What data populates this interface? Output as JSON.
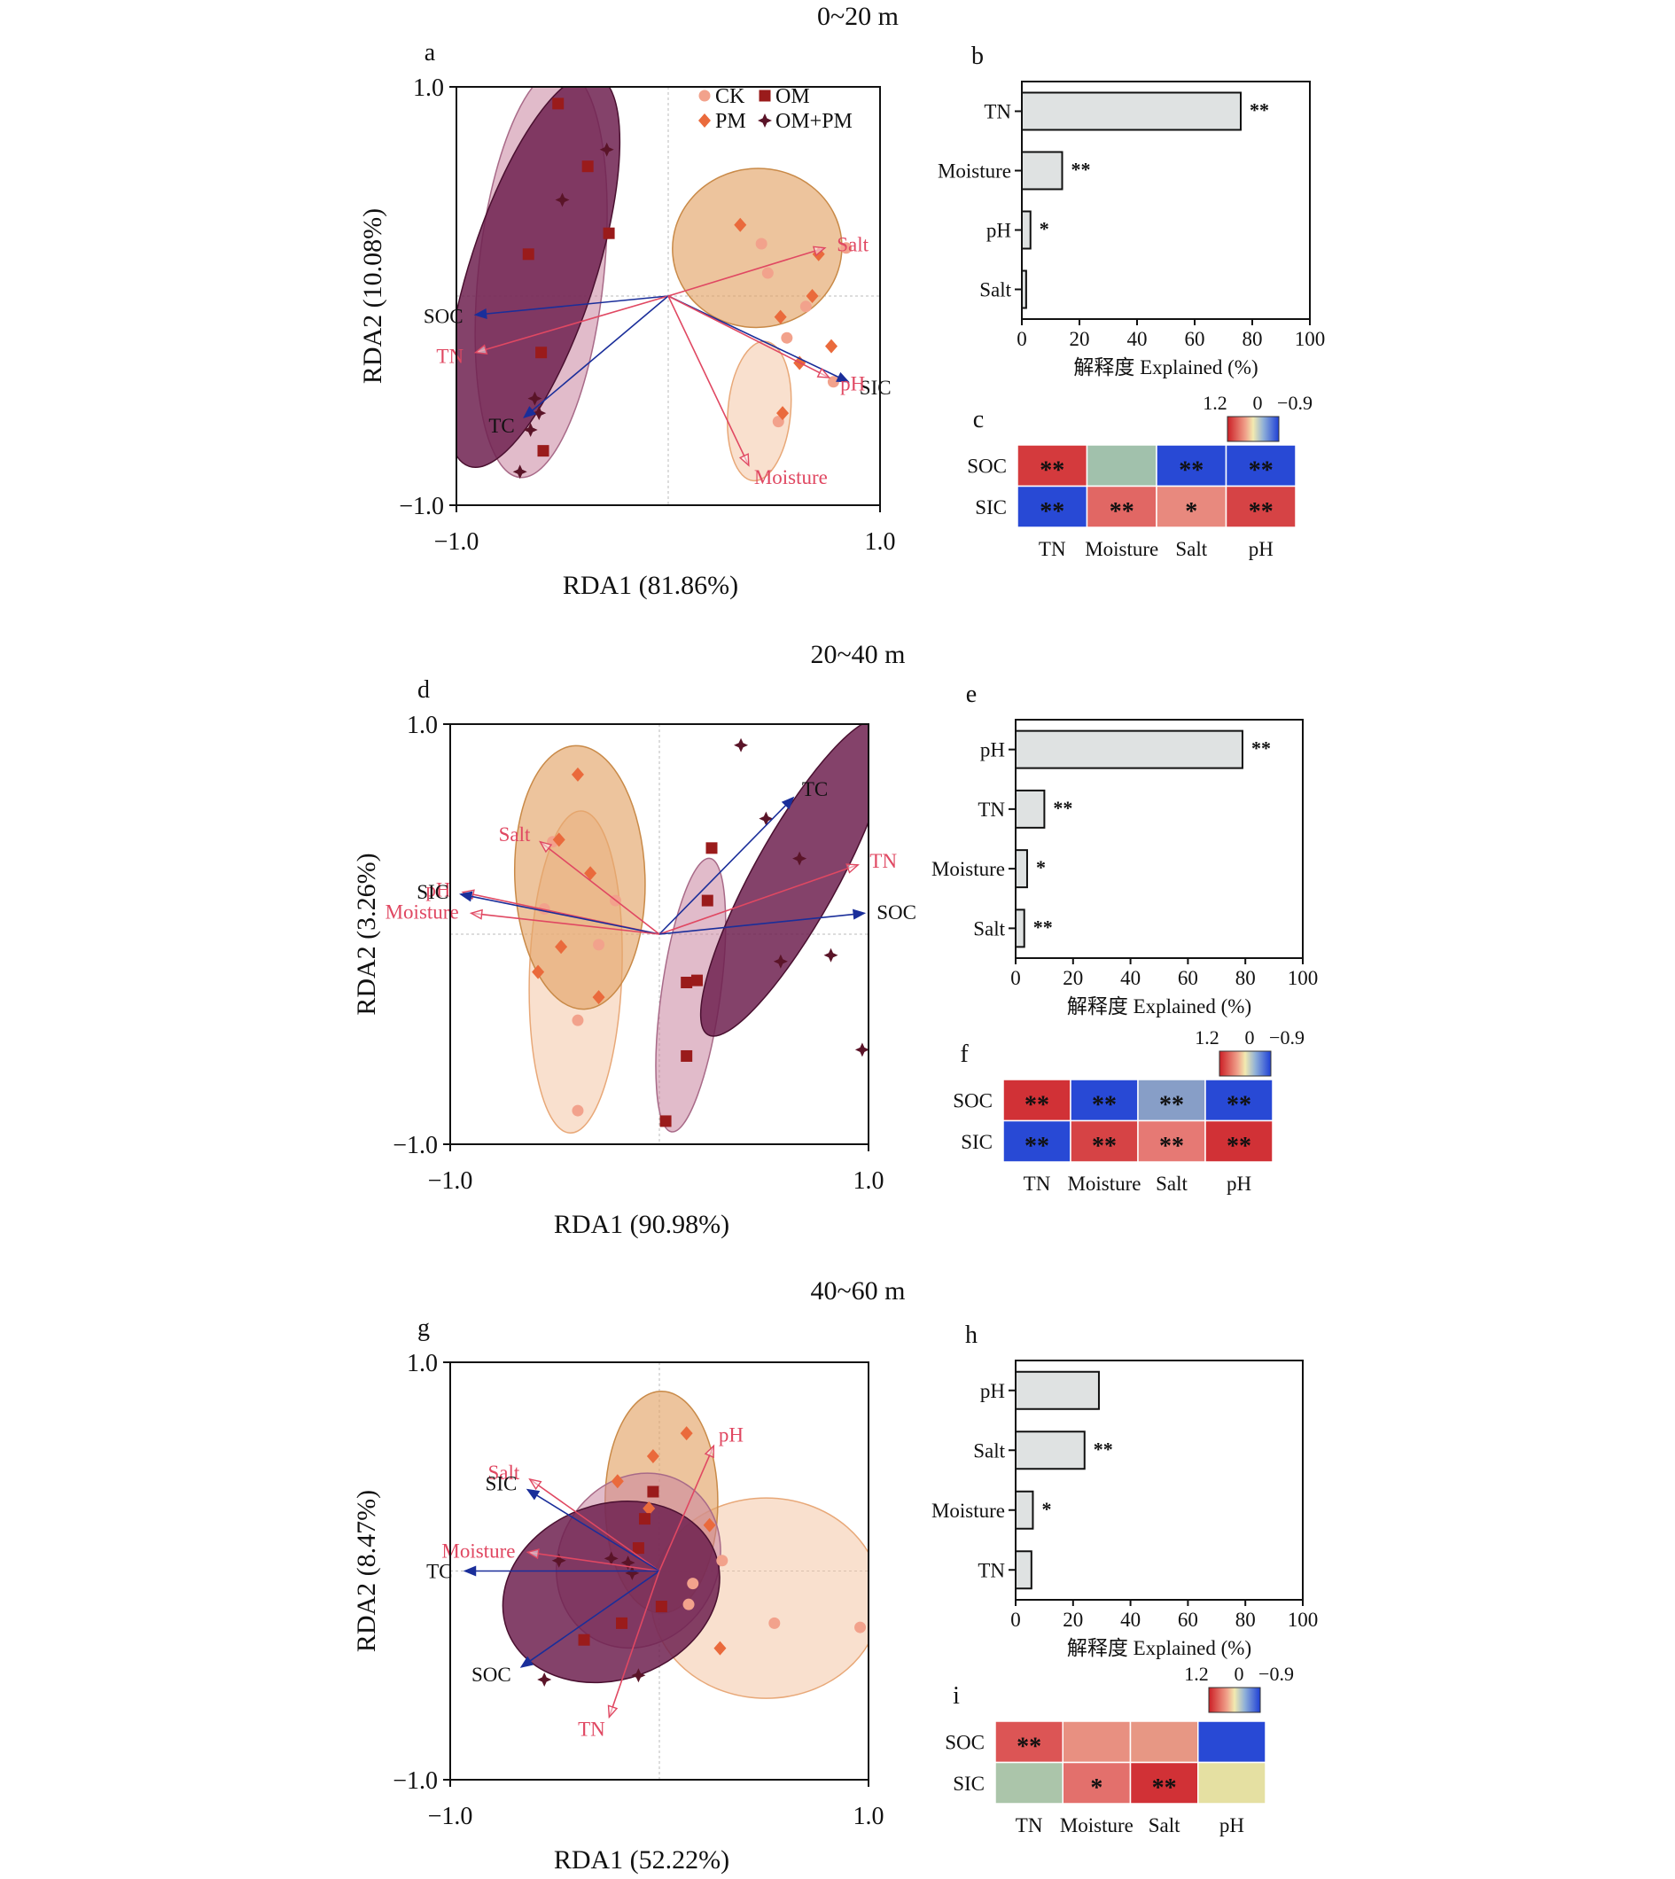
{
  "legend": [
    {
      "name": "CK",
      "color": "#f2a28c",
      "marker": "circle"
    },
    {
      "name": "OM",
      "color": "#9a1b1b",
      "marker": "square"
    },
    {
      "name": "PM",
      "color": "#ea6a3c",
      "marker": "diamond"
    },
    {
      "name": "OM+PM",
      "color": "#5a1428",
      "marker": "star"
    }
  ],
  "colors": {
    "ck_ellipse": "#f4c7a6",
    "pm_ellipse": "#e3a468",
    "om_ellipse": "#c8849e",
    "ompm_ellipse": "#6e2150",
    "red_arrow": "#e04862",
    "blue_arrow": "#1a2e9a",
    "bar_fill": "#dfe2e2"
  },
  "colorbar": {
    "max": "1.2",
    "mid": "0",
    "min": "−0.9"
  },
  "sections": [
    {
      "title": "0~20 m",
      "rda": {
        "letter": "a",
        "xlabel": "RDA1 (81.86%)",
        "ylabel": "RDA2 (10.08%)",
        "xticks": [
          "−1.0",
          "1.0"
        ],
        "yticks": [
          "1.0",
          "−1.0"
        ],
        "ellipses": [
          {
            "group": "CK",
            "cx": 0.43,
            "cy": -0.55,
            "rx": 0.33,
            "ry": 0.15,
            "angle": -85
          },
          {
            "group": "PM",
            "cx": 0.42,
            "cy": 0.23,
            "rx": 0.4,
            "ry": 0.38,
            "angle": -5
          },
          {
            "group": "OM",
            "cx": -0.6,
            "cy": 0.11,
            "rx": 0.97,
            "ry": 0.3,
            "angle": -84
          },
          {
            "group": "OM+PM",
            "cx": -0.64,
            "cy": 0.12,
            "rx": 0.97,
            "ry": 0.3,
            "angle": -72
          }
        ],
        "points": [
          {
            "group": "CK",
            "x": 0.44,
            "y": 0.25
          },
          {
            "group": "CK",
            "x": 0.56,
            "y": -0.2
          },
          {
            "group": "CK",
            "x": 0.65,
            "y": -0.05
          },
          {
            "group": "CK",
            "x": 0.47,
            "y": 0.11
          },
          {
            "group": "CK",
            "x": 0.84,
            "y": 0.23
          },
          {
            "group": "CK",
            "x": 0.78,
            "y": -0.41
          },
          {
            "group": "CK",
            "x": 0.52,
            "y": -0.6
          },
          {
            "group": "PM",
            "x": 0.34,
            "y": 0.34
          },
          {
            "group": "PM",
            "x": 0.53,
            "y": -0.1
          },
          {
            "group": "PM",
            "x": 0.68,
            "y": 0.0
          },
          {
            "group": "PM",
            "x": 0.77,
            "y": -0.24
          },
          {
            "group": "PM",
            "x": 0.54,
            "y": -0.56
          },
          {
            "group": "PM",
            "x": 0.62,
            "y": -0.32
          },
          {
            "group": "PM",
            "x": 0.71,
            "y": 0.2
          },
          {
            "group": "OM",
            "x": -0.52,
            "y": 0.92
          },
          {
            "group": "OM",
            "x": -0.38,
            "y": 0.62
          },
          {
            "group": "OM",
            "x": -0.28,
            "y": 0.3
          },
          {
            "group": "OM",
            "x": -0.66,
            "y": 0.2
          },
          {
            "group": "OM",
            "x": -0.6,
            "y": -0.27
          },
          {
            "group": "OM",
            "x": -0.59,
            "y": -0.74
          },
          {
            "group": "OM+PM",
            "x": -0.29,
            "y": 0.7
          },
          {
            "group": "OM+PM",
            "x": -0.5,
            "y": 0.46
          },
          {
            "group": "OM+PM",
            "x": -0.63,
            "y": -0.49
          },
          {
            "group": "OM+PM",
            "x": -0.65,
            "y": -0.64
          },
          {
            "group": "OM+PM",
            "x": -0.7,
            "y": -0.84
          },
          {
            "group": "OM+PM",
            "x": -0.61,
            "y": -0.56
          }
        ],
        "arrows": [
          {
            "label": "SOC",
            "color": "blue",
            "x": -0.91,
            "y": -0.09
          },
          {
            "label": "TN",
            "color": "red",
            "x": -0.91,
            "y": -0.27
          },
          {
            "label": "TC",
            "color": "blue",
            "x": -0.68,
            "y": -0.58
          },
          {
            "label": "Salt",
            "color": "red",
            "x": 0.74,
            "y": 0.23
          },
          {
            "label": "SIC",
            "color": "blue",
            "x": 0.85,
            "y": -0.41
          },
          {
            "label": "pH",
            "color": "red",
            "x": 0.76,
            "y": -0.39
          },
          {
            "label": "Moisture",
            "color": "red",
            "x": 0.38,
            "y": -0.81
          }
        ]
      },
      "bars": {
        "letter": "b",
        "xlabel": "解释度 Explained (%)",
        "xticks": [
          "0",
          "20",
          "40",
          "60",
          "80",
          "100"
        ],
        "xlim": [
          0,
          100
        ],
        "categories": [
          "TN",
          "Moisture",
          "pH",
          "Salt"
        ],
        "values": [
          76,
          14,
          3,
          1.5
        ],
        "signif": [
          "**",
          "**",
          "*",
          ""
        ]
      },
      "heatmap": {
        "letter": "c",
        "rows": [
          "SOC",
          "SIC"
        ],
        "cols": [
          "TN",
          "Moisture",
          "Salt",
          "pH"
        ],
        "values": [
          [
            1.05,
            -0.35,
            -0.85,
            -0.85
          ],
          [
            -0.85,
            0.8,
            0.6,
            1.0
          ]
        ],
        "stars": [
          [
            "**",
            "",
            "**",
            "**"
          ],
          [
            "**",
            "**",
            "*",
            "**"
          ]
        ]
      }
    },
    {
      "title": "20~40 m",
      "rda": {
        "letter": "d",
        "xlabel": "RDA1 (90.98%)",
        "ylabel": "RDA2 (3.26%)",
        "xticks": [
          "−1.0",
          "1.0"
        ],
        "yticks": [
          "1.0",
          "−1.0"
        ],
        "ellipses": [
          {
            "group": "CK",
            "cx": -0.4,
            "cy": -0.18,
            "rx": 0.77,
            "ry": 0.22,
            "angle": -88
          },
          {
            "group": "PM",
            "cx": -0.38,
            "cy": 0.27,
            "rx": 0.63,
            "ry": 0.31,
            "angle": -92
          },
          {
            "group": "OM",
            "cx": 0.15,
            "cy": -0.29,
            "rx": 0.66,
            "ry": 0.14,
            "angle": -82
          },
          {
            "group": "OM+PM",
            "cx": 0.65,
            "cy": 0.27,
            "rx": 0.86,
            "ry": 0.2,
            "angle": -61
          }
        ],
        "points": [
          {
            "group": "CK",
            "x": -0.51,
            "y": 0.44
          },
          {
            "group": "CK",
            "x": -0.55,
            "y": 0.12
          },
          {
            "group": "CK",
            "x": -0.21,
            "y": 0.16
          },
          {
            "group": "CK",
            "x": -0.29,
            "y": -0.05
          },
          {
            "group": "CK",
            "x": -0.39,
            "y": -0.41
          },
          {
            "group": "CK",
            "x": -0.39,
            "y": -0.84
          },
          {
            "group": "PM",
            "x": -0.39,
            "y": 0.76
          },
          {
            "group": "PM",
            "x": -0.48,
            "y": 0.45
          },
          {
            "group": "PM",
            "x": -0.33,
            "y": 0.29
          },
          {
            "group": "PM",
            "x": -0.58,
            "y": -0.18
          },
          {
            "group": "PM",
            "x": -0.47,
            "y": -0.06
          },
          {
            "group": "PM",
            "x": -0.29,
            "y": -0.3
          },
          {
            "group": "OM",
            "x": 0.25,
            "y": 0.41
          },
          {
            "group": "OM",
            "x": 0.23,
            "y": 0.16
          },
          {
            "group": "OM",
            "x": 0.13,
            "y": -0.23
          },
          {
            "group": "OM",
            "x": 0.18,
            "y": -0.22
          },
          {
            "group": "OM",
            "x": 0.13,
            "y": -0.58
          },
          {
            "group": "OM",
            "x": 0.03,
            "y": -0.89
          },
          {
            "group": "OM+PM",
            "x": 0.39,
            "y": 0.9
          },
          {
            "group": "OM+PM",
            "x": 0.51,
            "y": 0.55
          },
          {
            "group": "OM+PM",
            "x": 0.67,
            "y": 0.36
          },
          {
            "group": "OM+PM",
            "x": 0.58,
            "y": -0.13
          },
          {
            "group": "OM+PM",
            "x": 0.82,
            "y": -0.1
          },
          {
            "group": "OM+PM",
            "x": 0.97,
            "y": -0.55
          }
        ],
        "arrows": [
          {
            "label": "TC",
            "color": "blue",
            "x": 0.64,
            "y": 0.65
          },
          {
            "label": "TN",
            "color": "red",
            "x": 0.95,
            "y": 0.33
          },
          {
            "label": "SOC",
            "color": "blue",
            "x": 0.98,
            "y": 0.1
          },
          {
            "label": "Salt",
            "color": "red",
            "x": -0.57,
            "y": 0.44
          },
          {
            "label": "pH",
            "color": "red",
            "x": -0.94,
            "y": 0.2
          },
          {
            "label": "SIC",
            "color": "blue",
            "x": -0.95,
            "y": 0.19
          },
          {
            "label": "Moisture",
            "color": "red",
            "x": -0.9,
            "y": 0.1
          }
        ]
      },
      "bars": {
        "letter": "e",
        "xlabel": "解释度 Explained (%)",
        "xticks": [
          "0",
          "20",
          "40",
          "60",
          "80",
          "100"
        ],
        "xlim": [
          0,
          100
        ],
        "categories": [
          "pH",
          "TN",
          "Moisture",
          "Salt"
        ],
        "values": [
          79,
          10,
          4,
          3
        ],
        "signif": [
          "**",
          "**",
          "*",
          "**"
        ]
      },
      "heatmap": {
        "letter": "f",
        "rows": [
          "SOC",
          "SIC"
        ],
        "cols": [
          "TN",
          "Moisture",
          "Salt",
          "pH"
        ],
        "values": [
          [
            1.1,
            -0.85,
            -0.4,
            -0.85
          ],
          [
            -0.85,
            1.0,
            0.7,
            1.1
          ]
        ],
        "stars": [
          [
            "**",
            "**",
            "**",
            "**"
          ],
          [
            "**",
            "**",
            "**",
            "**"
          ]
        ]
      }
    },
    {
      "title": "40~60 m",
      "rda": {
        "letter": "g",
        "xlabel": "RDA1 (52.22%)",
        "ylabel": "RDA2 (8.47%)",
        "xticks": [
          "−1.0",
          "1.0"
        ],
        "yticks": [
          "1.0",
          "−1.0"
        ],
        "ellipses": [
          {
            "group": "CK",
            "cx": 0.51,
            "cy": -0.13,
            "rx": 0.55,
            "ry": 0.48,
            "angle": 0
          },
          {
            "group": "PM",
            "cx": 0.01,
            "cy": 0.33,
            "rx": 0.53,
            "ry": 0.27,
            "angle": -90
          },
          {
            "group": "OM",
            "cx": -0.1,
            "cy": 0.05,
            "rx": 0.43,
            "ry": 0.38,
            "angle": -60
          },
          {
            "group": "OM+PM",
            "cx": -0.23,
            "cy": -0.1,
            "rx": 0.53,
            "ry": 0.42,
            "angle": -20
          }
        ],
        "points": [
          {
            "group": "CK",
            "x": 0.3,
            "y": 0.05
          },
          {
            "group": "CK",
            "x": 0.16,
            "y": -0.06
          },
          {
            "group": "CK",
            "x": 0.14,
            "y": -0.16
          },
          {
            "group": "CK",
            "x": 0.55,
            "y": -0.25
          },
          {
            "group": "CK",
            "x": 0.96,
            "y": -0.27
          },
          {
            "group": "PM",
            "x": 0.13,
            "y": 0.66
          },
          {
            "group": "PM",
            "x": -0.03,
            "y": 0.55
          },
          {
            "group": "PM",
            "x": -0.05,
            "y": 0.3
          },
          {
            "group": "PM",
            "x": -0.2,
            "y": 0.43
          },
          {
            "group": "PM",
            "x": 0.24,
            "y": 0.22
          },
          {
            "group": "PM",
            "x": 0.29,
            "y": -0.37
          },
          {
            "group": "OM",
            "x": -0.03,
            "y": 0.38
          },
          {
            "group": "OM",
            "x": -0.07,
            "y": 0.25
          },
          {
            "group": "OM",
            "x": -0.1,
            "y": 0.11
          },
          {
            "group": "OM",
            "x": 0.01,
            "y": -0.17
          },
          {
            "group": "OM",
            "x": -0.18,
            "y": -0.25
          },
          {
            "group": "OM",
            "x": -0.36,
            "y": -0.33
          },
          {
            "group": "OM+PM",
            "x": -0.48,
            "y": 0.05
          },
          {
            "group": "OM+PM",
            "x": -0.23,
            "y": 0.06
          },
          {
            "group": "OM+PM",
            "x": -0.15,
            "y": 0.04
          },
          {
            "group": "OM+PM",
            "x": -0.13,
            "y": -0.01
          },
          {
            "group": "OM+PM",
            "x": -0.1,
            "y": -0.5
          },
          {
            "group": "OM+PM",
            "x": -0.55,
            "y": -0.52
          }
        ],
        "arrows": [
          {
            "label": "pH",
            "color": "red",
            "x": 0.26,
            "y": 0.6
          },
          {
            "label": "Salt",
            "color": "red",
            "x": -0.62,
            "y": 0.44
          },
          {
            "label": "SIC",
            "color": "blue",
            "x": -0.63,
            "y": 0.39
          },
          {
            "label": "Moisture",
            "color": "red",
            "x": -0.63,
            "y": 0.09
          },
          {
            "label": "TC",
            "color": "blue",
            "x": -0.93,
            "y": 0.0
          },
          {
            "label": "SOC",
            "color": "blue",
            "x": -0.66,
            "y": -0.46
          },
          {
            "label": "TN",
            "color": "red",
            "x": -0.24,
            "y": -0.7
          }
        ]
      },
      "bars": {
        "letter": "h",
        "xlabel": "解释度 Explained (%)",
        "xticks": [
          "0",
          "20",
          "40",
          "60",
          "80",
          "100"
        ],
        "xlim": [
          0,
          100
        ],
        "categories": [
          "pH",
          "Salt",
          "Moisture",
          "TN"
        ],
        "values": [
          29,
          24,
          6,
          5.5
        ],
        "signif": [
          "",
          "**",
          "*",
          ""
        ]
      },
      "heatmap": {
        "letter": "i",
        "rows": [
          "SOC",
          "SIC"
        ],
        "cols": [
          "TN",
          "Moisture",
          "Salt",
          "pH"
        ],
        "values": [
          [
            0.9,
            0.55,
            0.5,
            -0.85
          ],
          [
            -0.3,
            0.75,
            1.1,
            0.0
          ]
        ],
        "stars": [
          [
            "**",
            "",
            "",
            ""
          ],
          [
            "",
            "*",
            "**",
            ""
          ]
        ]
      }
    }
  ]
}
